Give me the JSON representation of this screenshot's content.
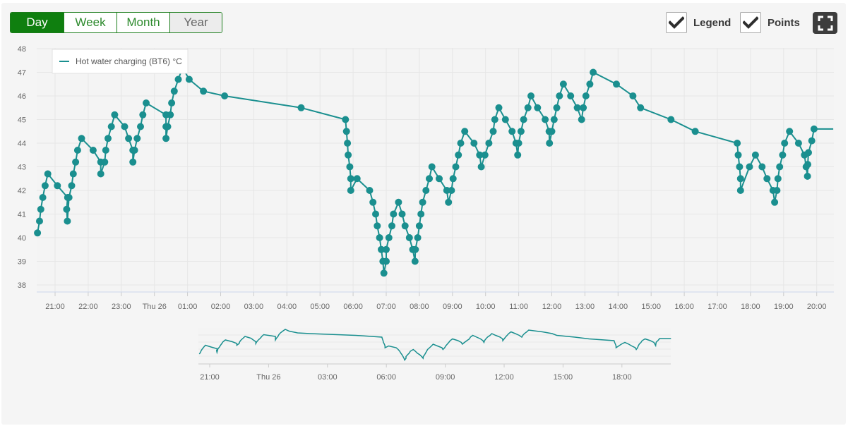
{
  "tabs": [
    {
      "label": "Day",
      "state": "active"
    },
    {
      "label": "Week",
      "state": "normal"
    },
    {
      "label": "Month",
      "state": "normal"
    },
    {
      "label": "Year",
      "state": "hover"
    }
  ],
  "toggles": {
    "legend": {
      "label": "Legend",
      "checked": true
    },
    "points": {
      "label": "Points",
      "checked": true
    }
  },
  "icons": {
    "fullscreen": "fullscreen-icon",
    "check": "check-icon"
  },
  "colors": {
    "series": "#1a8f8f",
    "active_tab": "#0f7f0f",
    "tab_text": "#2d8a2d"
  },
  "chart_data": {
    "type": "line",
    "title": "",
    "ylabel": "",
    "xlabel": "",
    "ylim": [
      38,
      48
    ],
    "yticks": [
      38,
      39,
      40,
      41,
      42,
      43,
      44,
      45,
      46,
      47,
      48
    ],
    "xrange_hours": [
      20.45,
      44.5
    ],
    "xticks": [
      {
        "label": "21:00",
        "h": 21
      },
      {
        "label": "22:00",
        "h": 22
      },
      {
        "label": "23:00",
        "h": 23
      },
      {
        "label": "Thu 26",
        "h": 24
      },
      {
        "label": "01:00",
        "h": 25
      },
      {
        "label": "02:00",
        "h": 26
      },
      {
        "label": "03:00",
        "h": 27
      },
      {
        "label": "04:00",
        "h": 28
      },
      {
        "label": "05:00",
        "h": 29
      },
      {
        "label": "06:00",
        "h": 30
      },
      {
        "label": "07:00",
        "h": 31
      },
      {
        "label": "08:00",
        "h": 32
      },
      {
        "label": "09:00",
        "h": 33
      },
      {
        "label": "10:00",
        "h": 34
      },
      {
        "label": "11:00",
        "h": 35
      },
      {
        "label": "12:00",
        "h": 36
      },
      {
        "label": "13:00",
        "h": 37
      },
      {
        "label": "14:00",
        "h": 38
      },
      {
        "label": "15:00",
        "h": 39
      },
      {
        "label": "16:00",
        "h": 40
      },
      {
        "label": "17:00",
        "h": 41
      },
      {
        "label": "18:00",
        "h": 42
      },
      {
        "label": "19:00",
        "h": 43
      },
      {
        "label": "20:00",
        "h": 44
      }
    ],
    "navigator_ticks": [
      {
        "label": "21:00",
        "h": 21
      },
      {
        "label": "Thu 26",
        "h": 24
      },
      {
        "label": "03:00",
        "h": 27
      },
      {
        "label": "06:00",
        "h": 30
      },
      {
        "label": "09:00",
        "h": 33
      },
      {
        "label": "12:00",
        "h": 36
      },
      {
        "label": "15:00",
        "h": 39
      },
      {
        "label": "18:00",
        "h": 42
      }
    ],
    "legend_position": "top-left",
    "grid": true,
    "series": [
      {
        "name": "Hot water charging (BT6) °C",
        "points": [
          [
            20.47,
            40.2
          ],
          [
            20.53,
            40.7
          ],
          [
            20.57,
            41.2
          ],
          [
            20.63,
            41.7
          ],
          [
            20.7,
            42.2
          ],
          [
            20.78,
            42.7
          ],
          [
            21.07,
            42.2
          ],
          [
            21.38,
            41.7
          ],
          [
            21.35,
            41.2
          ],
          [
            21.37,
            40.7
          ],
          [
            21.42,
            41.7
          ],
          [
            21.5,
            42.2
          ],
          [
            21.55,
            42.7
          ],
          [
            21.62,
            43.2
          ],
          [
            21.68,
            43.7
          ],
          [
            21.8,
            44.2
          ],
          [
            22.15,
            43.7
          ],
          [
            22.38,
            43.2
          ],
          [
            22.38,
            42.7
          ],
          [
            22.5,
            43.2
          ],
          [
            22.53,
            43.7
          ],
          [
            22.6,
            44.2
          ],
          [
            22.7,
            44.7
          ],
          [
            22.8,
            45.2
          ],
          [
            23.1,
            44.7
          ],
          [
            23.22,
            44.2
          ],
          [
            23.35,
            43.7
          ],
          [
            23.35,
            43.2
          ],
          [
            23.4,
            43.7
          ],
          [
            23.48,
            44.2
          ],
          [
            23.58,
            44.7
          ],
          [
            23.65,
            45.2
          ],
          [
            23.75,
            45.7
          ],
          [
            24.35,
            45.2
          ],
          [
            24.35,
            44.7
          ],
          [
            24.35,
            44.2
          ],
          [
            24.4,
            44.7
          ],
          [
            24.48,
            45.2
          ],
          [
            24.52,
            45.7
          ],
          [
            24.6,
            46.2
          ],
          [
            24.72,
            46.7
          ],
          [
            24.85,
            47.2
          ],
          [
            25.05,
            46.7
          ],
          [
            25.48,
            46.2
          ],
          [
            26.12,
            46.0
          ],
          [
            28.43,
            45.5
          ],
          [
            29.77,
            45.0
          ],
          [
            29.8,
            44.5
          ],
          [
            29.83,
            44.0
          ],
          [
            29.85,
            43.5
          ],
          [
            29.9,
            43.0
          ],
          [
            29.93,
            42.5
          ],
          [
            29.93,
            42.0
          ],
          [
            30.12,
            42.5
          ],
          [
            30.5,
            42.0
          ],
          [
            30.6,
            41.5
          ],
          [
            30.68,
            41.0
          ],
          [
            30.73,
            40.5
          ],
          [
            30.8,
            40.0
          ],
          [
            30.85,
            39.5
          ],
          [
            30.9,
            39.0
          ],
          [
            30.93,
            38.5
          ],
          [
            31.0,
            39.0
          ],
          [
            31.0,
            39.5
          ],
          [
            31.08,
            40.0
          ],
          [
            31.17,
            40.5
          ],
          [
            31.22,
            41.0
          ],
          [
            31.37,
            41.5
          ],
          [
            31.48,
            41.0
          ],
          [
            31.57,
            40.5
          ],
          [
            31.7,
            40.0
          ],
          [
            31.8,
            39.5
          ],
          [
            31.87,
            39.0
          ],
          [
            31.88,
            39.5
          ],
          [
            31.95,
            40.0
          ],
          [
            32.0,
            40.5
          ],
          [
            32.05,
            41.0
          ],
          [
            32.1,
            41.5
          ],
          [
            32.2,
            42.0
          ],
          [
            32.3,
            42.5
          ],
          [
            32.38,
            43.0
          ],
          [
            32.6,
            42.5
          ],
          [
            32.83,
            42.0
          ],
          [
            32.88,
            41.5
          ],
          [
            32.97,
            42.0
          ],
          [
            33.02,
            42.5
          ],
          [
            33.1,
            43.0
          ],
          [
            33.18,
            43.5
          ],
          [
            33.25,
            44.0
          ],
          [
            33.37,
            44.5
          ],
          [
            33.65,
            44.0
          ],
          [
            33.82,
            43.5
          ],
          [
            33.87,
            43.0
          ],
          [
            33.98,
            43.5
          ],
          [
            34.1,
            44.0
          ],
          [
            34.23,
            44.5
          ],
          [
            34.28,
            45.0
          ],
          [
            34.4,
            45.5
          ],
          [
            34.6,
            45.0
          ],
          [
            34.8,
            44.5
          ],
          [
            34.92,
            44.0
          ],
          [
            34.97,
            43.5
          ],
          [
            35.0,
            44.0
          ],
          [
            35.07,
            44.5
          ],
          [
            35.15,
            45.0
          ],
          [
            35.28,
            45.5
          ],
          [
            35.37,
            46.0
          ],
          [
            35.57,
            45.5
          ],
          [
            35.8,
            45.0
          ],
          [
            35.92,
            44.5
          ],
          [
            35.93,
            44.0
          ],
          [
            36.0,
            44.5
          ],
          [
            36.07,
            45.0
          ],
          [
            36.15,
            45.5
          ],
          [
            36.23,
            46.0
          ],
          [
            36.35,
            46.5
          ],
          [
            36.57,
            46.0
          ],
          [
            36.77,
            45.5
          ],
          [
            36.9,
            45.0
          ],
          [
            36.95,
            45.5
          ],
          [
            37.03,
            46.0
          ],
          [
            37.15,
            46.5
          ],
          [
            37.25,
            47.0
          ],
          [
            37.95,
            46.5
          ],
          [
            38.45,
            46.0
          ],
          [
            38.68,
            45.5
          ],
          [
            39.6,
            45.0
          ],
          [
            40.33,
            44.5
          ],
          [
            41.6,
            44.0
          ],
          [
            41.63,
            43.5
          ],
          [
            41.67,
            43.0
          ],
          [
            41.7,
            42.5
          ],
          [
            41.7,
            42.0
          ],
          [
            41.97,
            43.0
          ],
          [
            42.15,
            43.5
          ],
          [
            42.35,
            43.0
          ],
          [
            42.5,
            42.5
          ],
          [
            42.68,
            42.0
          ],
          [
            42.73,
            41.5
          ],
          [
            42.8,
            42.0
          ],
          [
            42.83,
            42.5
          ],
          [
            42.88,
            43.0
          ],
          [
            42.97,
            43.5
          ],
          [
            43.03,
            44.0
          ],
          [
            43.18,
            44.5
          ],
          [
            43.45,
            44.0
          ],
          [
            43.63,
            43.5
          ],
          [
            43.68,
            43.0
          ],
          [
            43.72,
            42.6
          ],
          [
            43.73,
            43.1
          ],
          [
            43.75,
            43.6
          ],
          [
            43.85,
            44.1
          ],
          [
            43.92,
            44.6
          ],
          [
            44.5,
            44.6
          ]
        ]
      }
    ]
  }
}
